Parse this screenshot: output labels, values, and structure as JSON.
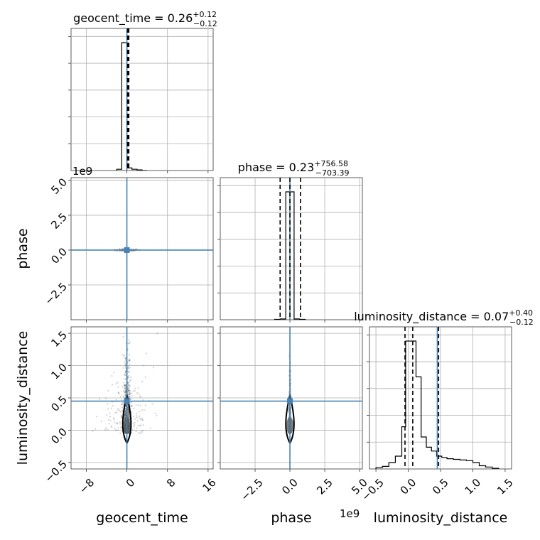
{
  "chart_data": {
    "type": "corner",
    "parameters": [
      "geocent_time",
      "phase",
      "luminosity_distance"
    ],
    "truths": {
      "geocent_time": 0.0,
      "phase": 0.0,
      "luminosity_distance": 0.45
    },
    "titles": [
      {
        "param": "geocent_time",
        "text": "geocent_time = 0.26",
        "plus": "+0.12",
        "minus": "−0.12"
      },
      {
        "param": "phase",
        "text": "phase = 0.23",
        "plus": "+756.58",
        "minus": "−703.39"
      },
      {
        "param": "luminosity_distance",
        "text": "luminosity_distance = 0.07",
        "plus": "+0.40",
        "minus": "−0.12"
      }
    ],
    "axis_labels": {
      "geocent_time": "geocent_time",
      "phase": "phase",
      "luminosity_distance": "luminosity_distance"
    },
    "ranges": {
      "geocent_time": [
        -11,
        17
      ],
      "phase": [
        -5000000000,
        5200000000
      ],
      "luminosity_distance": [
        -0.6,
        1.6
      ]
    },
    "offset_labels": {
      "phase_y": "1e9",
      "phase_x": "1e9"
    },
    "ticks": {
      "geocent_time": {
        "values": [
          -8,
          0,
          8,
          16
        ],
        "labels": [
          "−8",
          "0",
          "8",
          "16"
        ]
      },
      "phase": {
        "values": [
          -2500000000,
          0,
          2500000000,
          5000000000
        ],
        "labels": [
          "−2.5",
          "0.0",
          "2.5",
          "5.0"
        ]
      },
      "luminosity_distance": {
        "values": [
          -0.5,
          0.0,
          0.5,
          1.0,
          1.5
        ],
        "labels": [
          "−0.5",
          "0.0",
          "0.5",
          "1.0",
          "1.5"
        ]
      }
    },
    "histograms": {
      "geocent_time": {
        "edges": [
          -2,
          -1,
          0,
          1,
          2,
          3,
          4
        ],
        "counts": [
          0.01,
          1.0,
          0.02,
          0.01,
          0.005,
          0.0
        ],
        "quantiles": [
          0.14,
          0.26,
          0.38
        ]
      },
      "phase": {
        "edges": [
          -1100000000,
          -700000000,
          -300000000,
          300000000,
          700000000,
          1100000000
        ],
        "counts": [
          0.003,
          0.006,
          1.0,
          0.006,
          0.003
        ],
        "quantiles": [
          -703160000,
          230000,
          756810000
        ]
      },
      "luminosity_distance": {
        "edges": [
          -0.5,
          -0.4,
          -0.3,
          -0.2,
          -0.1,
          -0.04,
          0.04,
          0.12,
          0.2,
          0.28,
          0.36,
          0.44,
          0.52,
          0.6,
          0.7,
          0.8,
          0.9,
          1.0,
          1.1,
          1.2,
          1.3,
          1.4
        ],
        "counts": [
          0.01,
          0.02,
          0.05,
          0.1,
          0.33,
          1.0,
          1.0,
          0.72,
          0.25,
          0.17,
          0.14,
          0.1,
          0.09,
          0.08,
          0.075,
          0.07,
          0.065,
          0.05,
          0.025,
          0.015,
          0.005
        ],
        "quantiles": [
          -0.05,
          0.07,
          0.47
        ]
      }
    },
    "grid": true
  }
}
